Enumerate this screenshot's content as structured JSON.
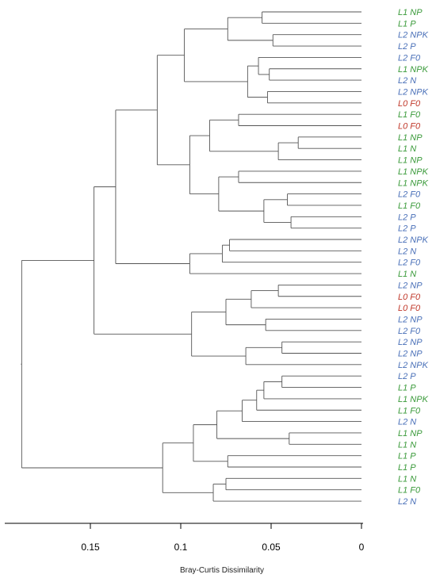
{
  "chart_data": {
    "type": "dendrogram",
    "xlabel": "Bray-Curtis Dissimilarity",
    "xlim": [
      0,
      0.2
    ],
    "xticks": [
      {
        "value": 0.15,
        "label": "0.15"
      },
      {
        "value": 0.1,
        "label": "0.1"
      },
      {
        "value": 0.05,
        "label": "0.05"
      },
      {
        "value": 0,
        "label": "0"
      }
    ],
    "colors": {
      "L0": "#c0392b",
      "L1": "#3a9a3a",
      "L2": "#4a70b8"
    },
    "leaves": [
      {
        "label": "L1 NP",
        "group": "L1"
      },
      {
        "label": "L1 P",
        "group": "L1"
      },
      {
        "label": "L2 NPK",
        "group": "L2"
      },
      {
        "label": "L2 P",
        "group": "L2"
      },
      {
        "label": "L2 F0",
        "group": "L2"
      },
      {
        "label": "L1 NPK",
        "group": "L1"
      },
      {
        "label": "L2 N",
        "group": "L2"
      },
      {
        "label": "L2 NPK",
        "group": "L2"
      },
      {
        "label": "L0 F0",
        "group": "L0"
      },
      {
        "label": "L1 F0",
        "group": "L1"
      },
      {
        "label": "L0 F0",
        "group": "L0"
      },
      {
        "label": "L1 NP",
        "group": "L1"
      },
      {
        "label": "L1 N",
        "group": "L1"
      },
      {
        "label": "L1 NP",
        "group": "L1"
      },
      {
        "label": "L1 NPK",
        "group": "L1"
      },
      {
        "label": "L1 NPK",
        "group": "L1"
      },
      {
        "label": "L2 F0",
        "group": "L2"
      },
      {
        "label": "L1 F0",
        "group": "L1"
      },
      {
        "label": "L2 P",
        "group": "L2"
      },
      {
        "label": "L2 P",
        "group": "L2"
      },
      {
        "label": "L2 NPK",
        "group": "L2"
      },
      {
        "label": "L2 N",
        "group": "L2"
      },
      {
        "label": "L2 F0",
        "group": "L2"
      },
      {
        "label": "L1 N",
        "group": "L1"
      },
      {
        "label": "L2 NP",
        "group": "L2"
      },
      {
        "label": "L0 F0",
        "group": "L0"
      },
      {
        "label": "L0 F0",
        "group": "L0"
      },
      {
        "label": "L2 NP",
        "group": "L2"
      },
      {
        "label": "L2 F0",
        "group": "L2"
      },
      {
        "label": "L2 NP",
        "group": "L2"
      },
      {
        "label": "L2 NP",
        "group": "L2"
      },
      {
        "label": "L2 NPK",
        "group": "L2"
      },
      {
        "label": "L2 P",
        "group": "L2"
      },
      {
        "label": "L1 P",
        "group": "L1"
      },
      {
        "label": "L1 NPK",
        "group": "L1"
      },
      {
        "label": "L1 F0",
        "group": "L1"
      },
      {
        "label": "L2 N",
        "group": "L2"
      },
      {
        "label": "L1 NP",
        "group": "L1"
      },
      {
        "label": "L1 N",
        "group": "L1"
      },
      {
        "label": "L1 P",
        "group": "L1"
      },
      {
        "label": "L1 P",
        "group": "L1"
      },
      {
        "label": "L1 N",
        "group": "L1"
      },
      {
        "label": "L1 F0",
        "group": "L1"
      },
      {
        "label": "L2 N",
        "group": "L2"
      }
    ],
    "merges": [
      {
        "a": 0,
        "b": 1,
        "h": 0.055
      },
      {
        "a": 2,
        "b": 3,
        "h": 0.049
      },
      {
        "a": "m0",
        "b": "m1",
        "h": 0.074
      },
      {
        "a": 5,
        "b": 6,
        "h": 0.051
      },
      {
        "a": 4,
        "b": "m3",
        "h": 0.057
      },
      {
        "a": 7,
        "b": 8,
        "h": 0.052
      },
      {
        "a": "m4",
        "b": "m5",
        "h": 0.063
      },
      {
        "a": "m2",
        "b": "m6",
        "h": 0.098
      },
      {
        "a": 9,
        "b": 10,
        "h": 0.068
      },
      {
        "a": 11,
        "b": 12,
        "h": 0.035
      },
      {
        "a": "m9",
        "b": 13,
        "h": 0.046
      },
      {
        "a": "m8",
        "b": "m10",
        "h": 0.084
      },
      {
        "a": 14,
        "b": 15,
        "h": 0.068
      },
      {
        "a": 16,
        "b": 17,
        "h": 0.041
      },
      {
        "a": 18,
        "b": 19,
        "h": 0.039
      },
      {
        "a": "m13",
        "b": "m14",
        "h": 0.054
      },
      {
        "a": "m12",
        "b": "m15",
        "h": 0.079
      },
      {
        "a": "m11",
        "b": "m16",
        "h": 0.095
      },
      {
        "a": "m7",
        "b": "m17",
        "h": 0.113
      },
      {
        "a": 20,
        "b": 21,
        "h": 0.073
      },
      {
        "a": "m19",
        "b": 22,
        "h": 0.077
      },
      {
        "a": "m20",
        "b": 23,
        "h": 0.095
      },
      {
        "a": "m18",
        "b": "m21",
        "h": 0.136
      },
      {
        "a": 24,
        "b": 25,
        "h": 0.046
      },
      {
        "a": "m23",
        "b": 26,
        "h": 0.061
      },
      {
        "a": 27,
        "b": 28,
        "h": 0.053
      },
      {
        "a": "m24",
        "b": "m25",
        "h": 0.075
      },
      {
        "a": 29,
        "b": 30,
        "h": 0.044
      },
      {
        "a": "m27",
        "b": 31,
        "h": 0.064
      },
      {
        "a": "m26",
        "b": "m28",
        "h": 0.094
      },
      {
        "a": "m22",
        "b": "m29",
        "h": 0.148
      },
      {
        "a": 32,
        "b": 33,
        "h": 0.044
      },
      {
        "a": "m31",
        "b": 34,
        "h": 0.054
      },
      {
        "a": "m32",
        "b": 35,
        "h": 0.058
      },
      {
        "a": "m33",
        "b": 36,
        "h": 0.066
      },
      {
        "a": 37,
        "b": 38,
        "h": 0.04
      },
      {
        "a": "m34",
        "b": "m35",
        "h": 0.08
      },
      {
        "a": 39,
        "b": 40,
        "h": 0.074
      },
      {
        "a": "m36",
        "b": "m37",
        "h": 0.093
      },
      {
        "a": 41,
        "b": 42,
        "h": 0.075
      },
      {
        "a": "m39",
        "b": 43,
        "h": 0.082
      },
      {
        "a": "m38",
        "b": "m40",
        "h": 0.11
      },
      {
        "a": "m30",
        "b": "m41",
        "h": 0.188
      }
    ]
  }
}
